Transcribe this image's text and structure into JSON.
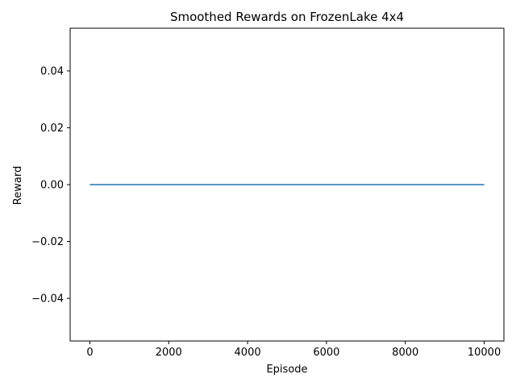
{
  "chart_data": {
    "type": "line",
    "title": "Smoothed Rewards on FrozenLake 4x4",
    "xlabel": "Episode",
    "ylabel": "Reward",
    "xlim": [
      -500,
      10500
    ],
    "ylim": [
      -0.055,
      0.055
    ],
    "x_ticks": [
      0,
      2000,
      4000,
      6000,
      8000,
      10000
    ],
    "x_tick_labels": [
      "0",
      "2000",
      "4000",
      "6000",
      "8000",
      "10000"
    ],
    "y_ticks": [
      -0.04,
      -0.02,
      0.0,
      0.02,
      0.04
    ],
    "y_tick_labels": [
      "−0.04",
      "−0.02",
      "0.00",
      "0.02",
      "0.04"
    ],
    "grid": false,
    "series": [
      {
        "color": "#1f77b4",
        "x": [
          0,
          10000
        ],
        "y": [
          0.0,
          0.0
        ]
      }
    ]
  }
}
